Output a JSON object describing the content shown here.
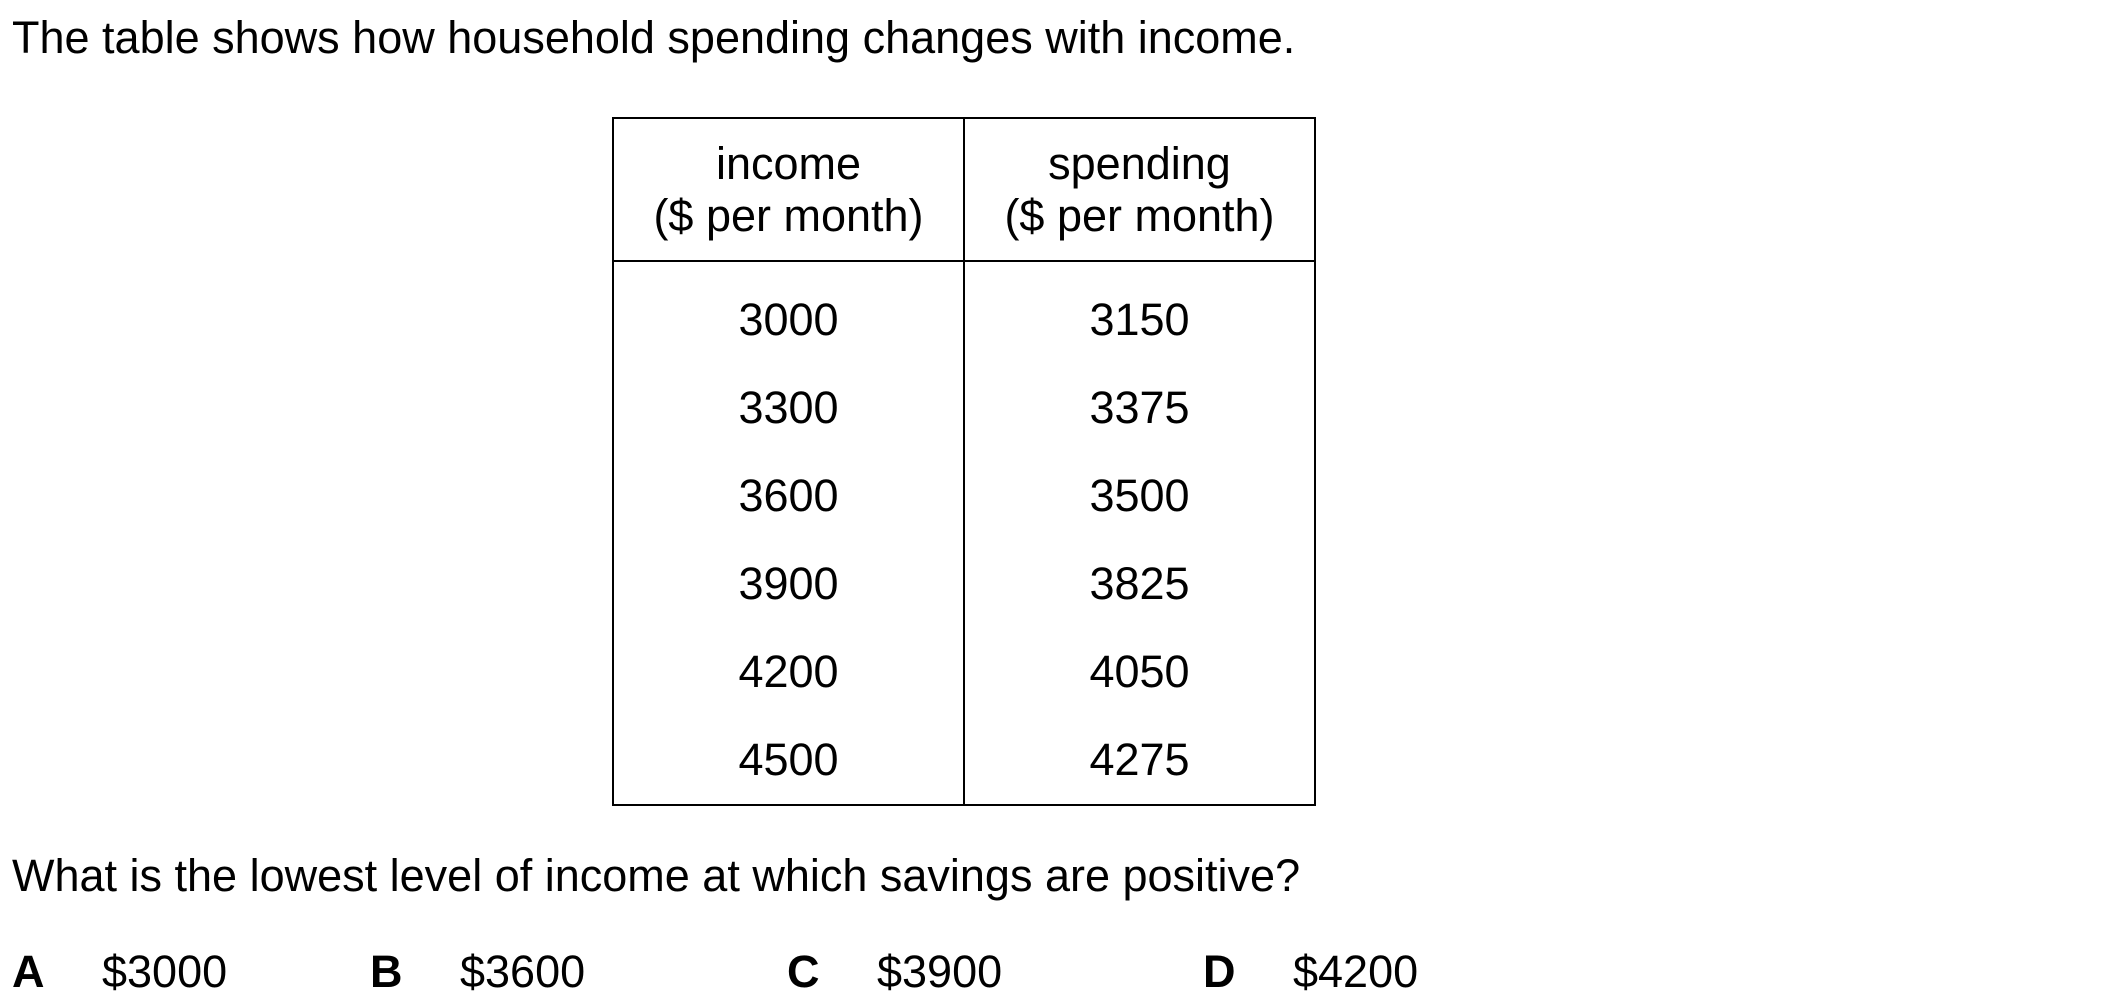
{
  "intro": "The table shows how household spending changes with income.",
  "table": {
    "headers": [
      {
        "line1": "income",
        "line2": "($ per month)"
      },
      {
        "line1": "spending",
        "line2": "($ per month)"
      }
    ],
    "rows": [
      [
        "3000",
        "3150"
      ],
      [
        "3300",
        "3375"
      ],
      [
        "3600",
        "3500"
      ],
      [
        "3900",
        "3825"
      ],
      [
        "4200",
        "4050"
      ],
      [
        "4500",
        "4275"
      ]
    ]
  },
  "question": "What is the lowest level of income at which savings are positive?",
  "options": [
    {
      "letter": "A",
      "value": "$3000"
    },
    {
      "letter": "B",
      "value": "$3600"
    },
    {
      "letter": "C",
      "value": "$3900"
    },
    {
      "letter": "D",
      "value": "$4200"
    }
  ]
}
